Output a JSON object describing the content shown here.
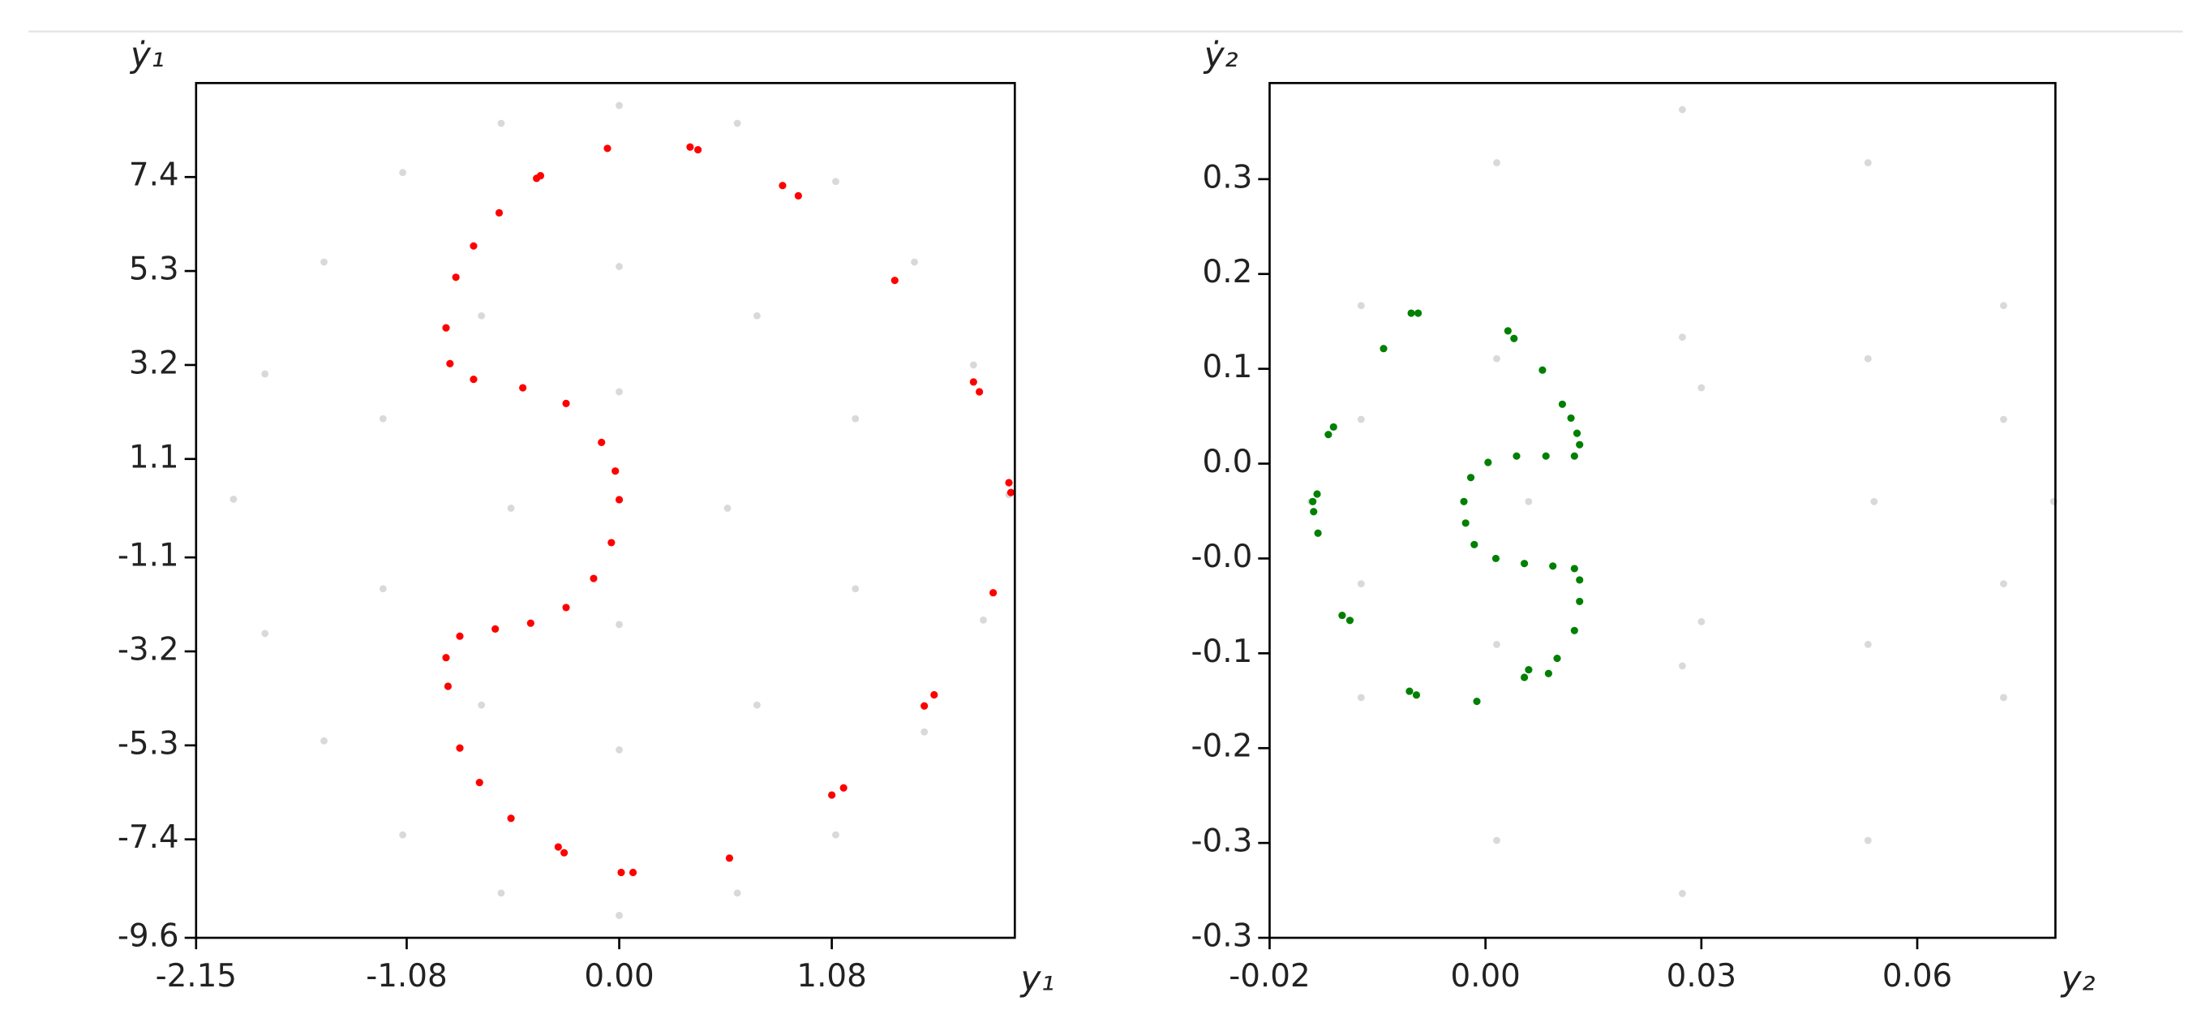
{
  "chart_data": [
    {
      "type": "scatter",
      "x_label": "y₁",
      "y_label": "ẏ₁",
      "xlim": [
        -2.15,
        2.01
      ],
      "ylim": [
        -9.6,
        9.5
      ],
      "xticks": [
        -2.15,
        -1.08,
        {
          "value": 0,
          "label": "0.00"
        },
        1.08
      ],
      "yticks": [
        -9.6,
        -7.4,
        -5.3,
        -3.2,
        -1.1,
        1.1,
        3.2,
        5.3,
        7.4
      ],
      "series": [
        {
          "color": "#d9d9d9",
          "x": [
            0,
            0.6,
            1.1,
            1.5,
            1.8,
            1.98,
            1.85,
            1.55,
            1.1,
            0.6,
            0,
            -0.6,
            -1.1,
            -1.5,
            -1.8,
            -1.96,
            -1.8,
            -1.5,
            -1.1,
            -0.6,
            0,
            0.7,
            1.2,
            1.2,
            0.7,
            0,
            -0.7,
            -1.2,
            -1.2,
            -0.7,
            0,
            0.55,
            0,
            -0.55
          ],
          "values": [
            9.0,
            8.6,
            7.3,
            5.5,
            3.2,
            0.3,
            -2.5,
            -5.0,
            -7.3,
            -8.6,
            -9.1,
            -8.6,
            -7.3,
            -5.2,
            -2.8,
            0.2,
            3.0,
            5.5,
            7.5,
            8.6,
            5.4,
            4.3,
            2.0,
            -1.8,
            -4.4,
            -5.4,
            -4.4,
            -1.8,
            2.0,
            4.3,
            2.6,
            0,
            -2.6,
            0
          ]
        },
        {
          "color": "#ff0000",
          "x": [
            -0.06,
            0.36,
            0.4,
            0.83,
            0.91,
            1.4,
            1.8,
            1.83,
            1.98,
            1.99,
            1.9,
            1.6,
            1.55,
            1.14,
            1.08,
            0.56,
            0.07,
            0.01,
            -0.28,
            -0.31,
            -0.55,
            -0.71,
            -0.81,
            -0.87,
            -0.88,
            -0.81,
            -0.63,
            -0.45,
            -0.27,
            -0.13,
            -0.04,
            0.0,
            -0.02,
            -0.09,
            -0.27,
            -0.49,
            -0.74,
            -0.86,
            -0.88,
            -0.83,
            -0.74,
            -0.61,
            -0.42,
            -0.4
          ],
          "values": [
            8.04,
            8.07,
            8.01,
            7.21,
            6.98,
            5.09,
            2.82,
            2.6,
            0.57,
            0.35,
            -1.89,
            -4.17,
            -4.42,
            -6.25,
            -6.41,
            -7.82,
            -8.14,
            -8.14,
            -7.7,
            -7.57,
            -6.93,
            -6.13,
            -5.36,
            -3.98,
            -3.34,
            -2.86,
            -2.7,
            -2.57,
            -2.22,
            -1.57,
            -0.77,
            0.19,
            0.83,
            1.47,
            2.34,
            2.69,
            2.88,
            3.23,
            4.03,
            5.16,
            5.86,
            6.6,
            7.37,
            7.43
          ]
        }
      ]
    },
    {
      "type": "scatter",
      "x_label": "y₂",
      "y_label": "ẏ₂",
      "xlim": [
        -0.02,
        0.071
      ],
      "ylim": [
        -0.33,
        0.346
      ],
      "xticks": [
        -0.02,
        {
          "value": 0.005,
          "label": "0.00"
        },
        0.03,
        {
          "value": 0.055,
          "label": "0.06"
        }
      ],
      "yticks": [
        {
          "value": -0.33,
          "label": "-0.3"
        },
        {
          "value": -0.255,
          "label": "-0.3"
        },
        {
          "value": -0.18,
          "label": "-0.2"
        },
        {
          "value": -0.105,
          "label": "-0.1"
        },
        {
          "value": -0.03,
          "label": "-0.0"
        },
        {
          "value": 0.045,
          "label": "0.0"
        },
        {
          "value": 0.12,
          "label": "0.1"
        },
        {
          "value": 0.195,
          "label": "0.2"
        },
        {
          "value": 0.27,
          "label": "0.3"
        }
      ],
      "series": [
        {
          "color": "#d9d9d9",
          "x": [
            0.0708,
            0.065,
            0.0493,
            0.0278,
            0.0063,
            -0.0094,
            -0.0152,
            -0.0094,
            0.0063,
            0.0278,
            0.0493,
            0.065,
            0.065,
            0.0493,
            0.0278,
            0.0063,
            -0.0094,
            -0.0094,
            0.0063,
            0.0278,
            0.0493,
            0.065,
            0.05,
            0.03,
            0.01,
            0.03
          ],
          "values": [
            0.015,
            0.17,
            0.283,
            0.325,
            0.283,
            0.17,
            0.015,
            -0.14,
            -0.253,
            -0.295,
            -0.253,
            -0.14,
            0.08,
            0.128,
            0.145,
            0.128,
            0.08,
            -0.05,
            -0.098,
            -0.115,
            -0.098,
            -0.05,
            0.015,
            0.105,
            0.015,
            -0.08
          ]
        },
        {
          "color": "#008000",
          "x": [
            -0.0036,
            -0.0028,
            -0.0068,
            0.0076,
            0.0083,
            0.0116,
            0.0139,
            0.0149,
            0.0156,
            0.0159,
            0.0153,
            0.012,
            0.0086,
            0.0053,
            0.0033,
            0.0025,
            0.0027,
            0.0037,
            0.0062,
            0.0095,
            0.0128,
            0.0153,
            0.0159,
            0.0159,
            0.0153,
            0.0133,
            0.0123,
            0.01,
            0.0095,
            0.004,
            -0.0038,
            -0.003,
            -0.0107,
            -0.0116,
            -0.0144,
            -0.0149,
            -0.015,
            -0.0145,
            -0.0132,
            -0.0126
          ],
          "values": [
            0.164,
            0.164,
            0.136,
            0.15,
            0.144,
            0.119,
            0.092,
            0.081,
            0.069,
            0.06,
            0.051,
            0.051,
            0.051,
            0.046,
            0.034,
            0.015,
            -0.002,
            -0.019,
            -0.03,
            -0.034,
            -0.036,
            -0.038,
            -0.047,
            -0.064,
            -0.087,
            -0.109,
            -0.121,
            -0.118,
            -0.124,
            -0.143,
            -0.135,
            -0.138,
            -0.079,
            -0.075,
            -0.01,
            0.007,
            0.015,
            0.021,
            0.068,
            0.074
          ]
        }
      ]
    }
  ]
}
